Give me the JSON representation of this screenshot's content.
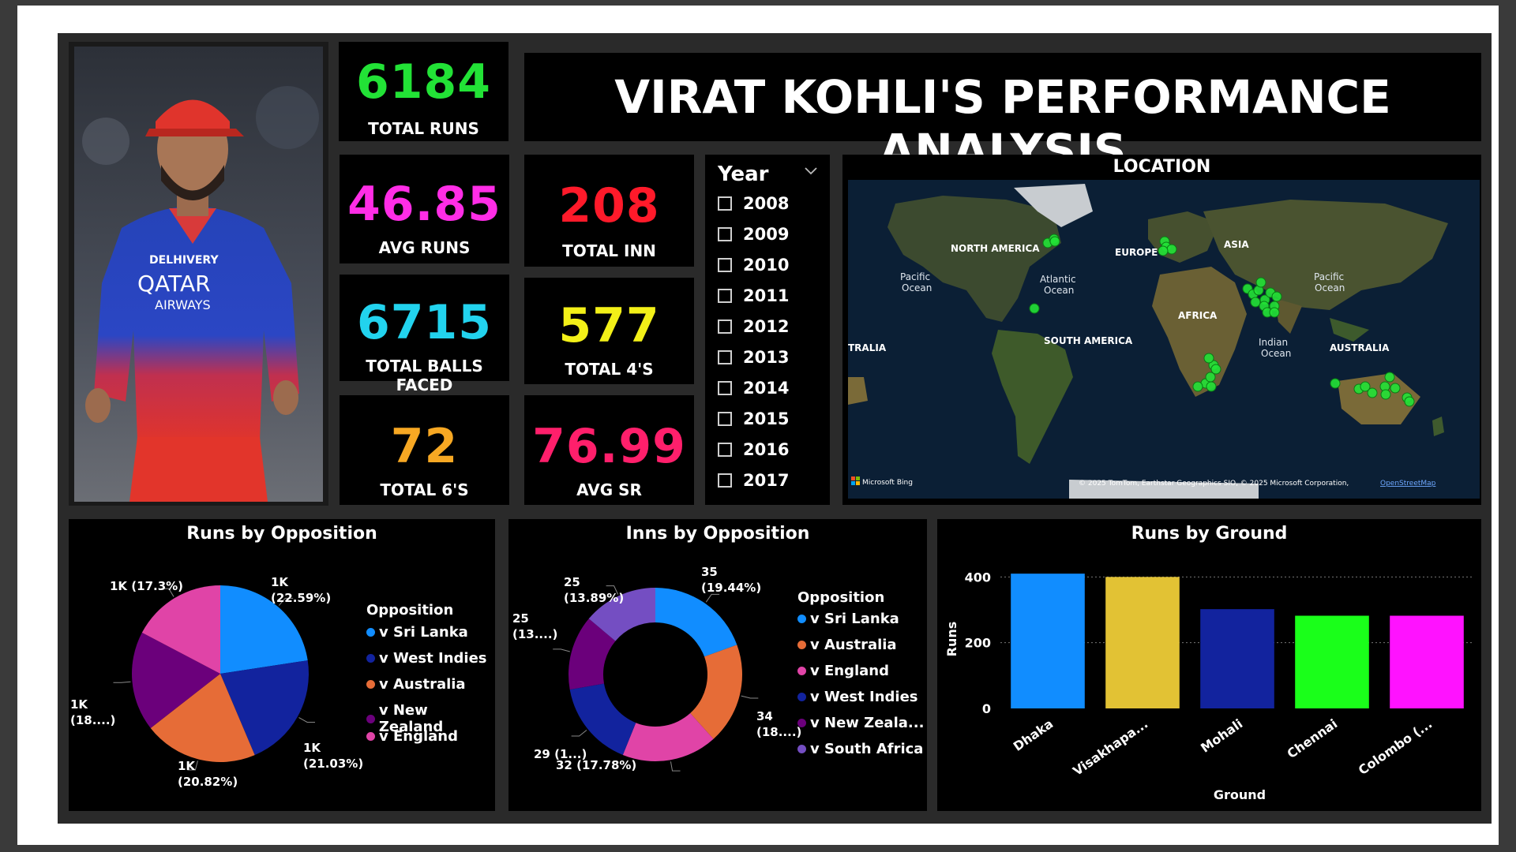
{
  "header": {
    "title": "VIRAT KOHLI'S PERFORMANCE ANALYSIS"
  },
  "kpis": {
    "total_runs": {
      "value": "6184",
      "label": "TOTAL RUNS",
      "color": "#22e236"
    },
    "avg_runs": {
      "value": "46.85",
      "label": "AVG RUNS",
      "color": "#ff2de6"
    },
    "total_inn": {
      "value": "208",
      "label": "TOTAL INN",
      "color": "#ff1a2a"
    },
    "total_balls": {
      "value": "6715",
      "label": "TOTAL BALLS FACED",
      "color": "#22d3ee"
    },
    "total_4s": {
      "value": "577",
      "label": "TOTAL 4'S",
      "color": "#f3f018"
    },
    "total_6s": {
      "value": "72",
      "label": "TOTAL 6'S",
      "color": "#f7a823"
    },
    "avg_sr": {
      "value": "76.99",
      "label": "AVG SR",
      "color": "#ff1f6b"
    }
  },
  "photo": {
    "jersey_text": [
      "DELHIVERY",
      "QATAR",
      "AIRWAYS"
    ]
  },
  "year_slicer": {
    "title": "Year",
    "options": [
      "2008",
      "2009",
      "2010",
      "2011",
      "2012",
      "2013",
      "2014",
      "2015",
      "2016",
      "2017"
    ]
  },
  "map": {
    "title": "LOCATION",
    "labels": {
      "north_america": "NORTH AMERICA",
      "europe": "EUROPE",
      "asia": "ASIA",
      "pacific_left": [
        "Pacific",
        "Ocean"
      ],
      "pacific_right": [
        "Pacific",
        "Ocean"
      ],
      "atlantic": [
        "Atlantic",
        "Ocean"
      ],
      "africa": "AFRICA",
      "south_america": "SOUTH AMERICA",
      "indian": [
        "Indian",
        "Ocean"
      ],
      "australia": "AUSTRALIA",
      "tralia": "TRALIA"
    },
    "bing": "Microsoft Bing",
    "attribution": "© 2025 TomTom, Earthstar Geographics SIO, © 2025 Microsoft Corporation,",
    "osm": "OpenStreetMap",
    "marker_color": "#22e236"
  },
  "chart_data": [
    {
      "type": "pie",
      "title": "Runs by Opposition",
      "legend_title": "Opposition",
      "series": [
        {
          "name": "v Sri Lanka",
          "value": 22.59,
          "label": [
            "1K",
            "(22.59%)"
          ],
          "color": "#118dff"
        },
        {
          "name": "v West Indies",
          "value": 21.03,
          "label": [
            "1K",
            "(21.03%)"
          ],
          "color": "#12239e"
        },
        {
          "name": "v Australia",
          "value": 20.82,
          "label": [
            "1K",
            "(20.82%)"
          ],
          "color": "#e66c37"
        },
        {
          "name": "v New Zealand",
          "value": 18.25,
          "label": [
            "1K",
            "(18....)"
          ],
          "color": "#6b007b"
        },
        {
          "name": "v England",
          "value": 17.3,
          "label": [
            "1K (17.3%)"
          ],
          "color": "#e044a7"
        }
      ]
    },
    {
      "type": "pie",
      "title": "Inns by Opposition",
      "legend_title": "Opposition",
      "series": [
        {
          "name": "v Sri Lanka",
          "value": 35,
          "label": [
            "35",
            "(19.44%)"
          ],
          "color": "#118dff"
        },
        {
          "name": "v Australia",
          "value": 34,
          "label": [
            "34",
            "(18....)"
          ],
          "color": "#e66c37"
        },
        {
          "name": "v England",
          "value": 32,
          "label": [
            "32 (17.78%)"
          ],
          "color": "#e044a7"
        },
        {
          "name": "v West Indies",
          "value": 29,
          "label": [
            "29 (1...)"
          ],
          "color": "#12239e"
        },
        {
          "name": "v New Zeala...",
          "value": 25,
          "label": [
            "25",
            "(13....)"
          ],
          "color": "#6b007b"
        },
        {
          "name": "v South Africa",
          "value": 25,
          "label": [
            "25",
            "(13.89%)"
          ],
          "color": "#744ec2"
        }
      ]
    },
    {
      "type": "bar",
      "title": "Runs by Ground",
      "xlabel": "Ground",
      "ylabel": "Runs",
      "categories": [
        "Dhaka",
        "Visakhapa...",
        "Mohali",
        "Chennai",
        "Colombo (..."
      ],
      "values": [
        410,
        400,
        302,
        282,
        282
      ],
      "colors": [
        "#118dff",
        "#e2c234",
        "#12239e",
        "#1aff1a",
        "#ff12ff"
      ],
      "ylim": [
        0,
        420
      ],
      "yticks": [
        0,
        200,
        400
      ],
      "grid": true
    }
  ]
}
